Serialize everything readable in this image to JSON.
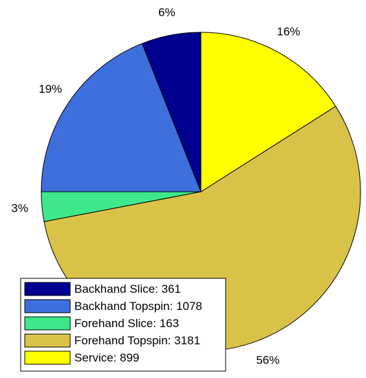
{
  "chart_data": {
    "type": "pie",
    "categories": [
      "Backhand Slice: 361",
      "Backhand Topspin: 1078",
      "Forehand Slice: 163",
      "Forehand Topspin: 3181",
      "Service: 899"
    ],
    "values": [
      6,
      19,
      3,
      56,
      16
    ],
    "value_labels": [
      "6%",
      "19%",
      "3%",
      "56%",
      "16%"
    ],
    "colors": [
      "#000090",
      "#3f6fdc",
      "#3ee88a",
      "#d9c248",
      "#ffff00"
    ],
    "legend": "lower left"
  }
}
